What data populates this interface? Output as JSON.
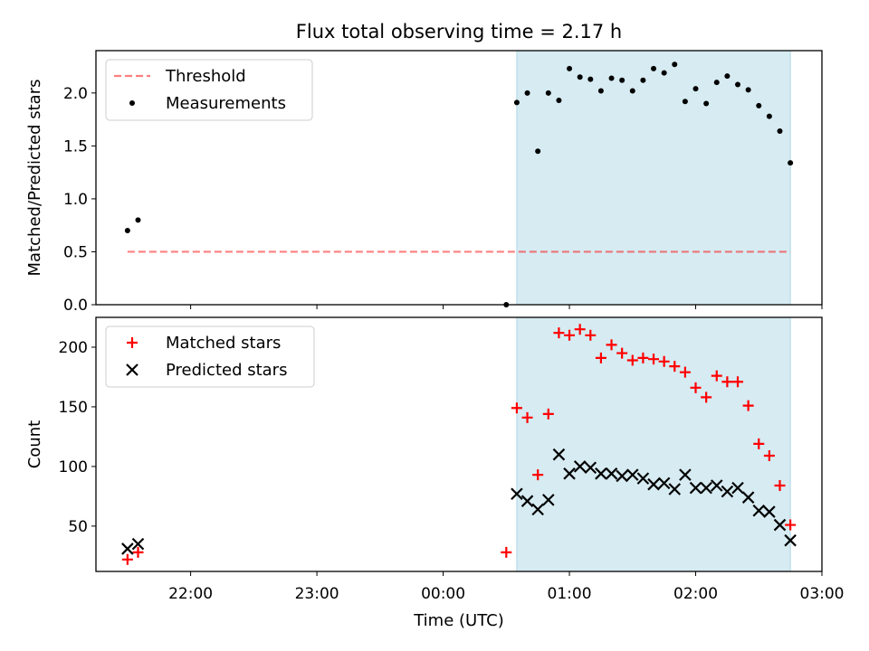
{
  "figure_title": "Flux total observing time = 2.17 h",
  "colors": {
    "shade": "#add8e6",
    "threshold": "#ff0000",
    "matched": "#ff0000",
    "predicted": "#000000",
    "measurement": "#000000"
  },
  "chart_data": [
    {
      "type": "scatter",
      "panel": "top",
      "ylabel": "Matched/Predicted stars",
      "ylim": [
        0,
        2.4
      ],
      "yticks": [
        0.0,
        0.5,
        1.0,
        1.5,
        2.0
      ],
      "ytick_labels": [
        "0.0",
        "0.5",
        "1.0",
        "1.5",
        "2.0"
      ],
      "xlim": [
        "21:15",
        "03:00"
      ],
      "shaded_span": [
        "00:35",
        "02:45"
      ],
      "legend": {
        "position": "upper-left",
        "entries": [
          "Threshold",
          "Measurements"
        ]
      },
      "threshold": {
        "name": "Threshold",
        "value": 0.5,
        "x": [
          "21:30",
          "02:45"
        ]
      },
      "series": [
        {
          "name": "Measurements",
          "x": [
            "21:30",
            "21:35",
            "00:30",
            "00:35",
            "00:40",
            "00:45",
            "00:50",
            "00:55",
            "01:00",
            "01:05",
            "01:10",
            "01:15",
            "01:20",
            "01:25",
            "01:30",
            "01:35",
            "01:40",
            "01:45",
            "01:50",
            "01:55",
            "02:00",
            "02:05",
            "02:10",
            "02:15",
            "02:20",
            "02:25",
            "02:30",
            "02:35",
            "02:40",
            "02:45"
          ],
          "y": [
            0.7,
            0.8,
            0.0,
            1.91,
            2.0,
            1.45,
            2.0,
            1.93,
            2.23,
            2.15,
            2.13,
            2.02,
            2.14,
            2.12,
            2.02,
            2.12,
            2.23,
            2.19,
            2.27,
            1.92,
            2.04,
            1.9,
            2.1,
            2.16,
            2.08,
            2.03,
            1.88,
            1.78,
            1.64,
            1.34
          ]
        }
      ]
    },
    {
      "type": "scatter",
      "panel": "bottom",
      "xlabel": "Time (UTC)",
      "ylabel": "Count",
      "ylim": [
        12,
        225
      ],
      "yticks": [
        50,
        100,
        150,
        200
      ],
      "ytick_labels": [
        "50",
        "100",
        "150",
        "200"
      ],
      "xlim": [
        "21:15",
        "03:00"
      ],
      "xticks": [
        "22:00",
        "23:00",
        "00:00",
        "01:00",
        "02:00",
        "03:00"
      ],
      "shaded_span": [
        "00:35",
        "02:45"
      ],
      "legend": {
        "position": "upper-left",
        "entries": [
          "Matched stars",
          "Predicted stars"
        ]
      },
      "series": [
        {
          "name": "Matched stars",
          "marker": "plus",
          "x": [
            "21:30",
            "21:35",
            "00:30",
            "00:35",
            "00:40",
            "00:45",
            "00:50",
            "00:55",
            "01:00",
            "01:05",
            "01:10",
            "01:15",
            "01:20",
            "01:25",
            "01:30",
            "01:35",
            "01:40",
            "01:45",
            "01:50",
            "01:55",
            "02:00",
            "02:05",
            "02:10",
            "02:15",
            "02:20",
            "02:25",
            "02:30",
            "02:35",
            "02:40",
            "02:45"
          ],
          "y": [
            22,
            28,
            28,
            149,
            141,
            93,
            144,
            212,
            210,
            215,
            210,
            191,
            202,
            195,
            189,
            191,
            190,
            188,
            184,
            179,
            166,
            158,
            176,
            171,
            171,
            151,
            119,
            109,
            84,
            51
          ]
        },
        {
          "name": "Predicted stars",
          "marker": "x",
          "x": [
            "21:30",
            "21:35",
            "00:35",
            "00:40",
            "00:45",
            "00:50",
            "00:55",
            "01:00",
            "01:05",
            "01:10",
            "01:15",
            "01:20",
            "01:25",
            "01:30",
            "01:35",
            "01:40",
            "01:45",
            "01:50",
            "01:55",
            "02:00",
            "02:05",
            "02:10",
            "02:15",
            "02:20",
            "02:25",
            "02:30",
            "02:35",
            "02:40",
            "02:45"
          ],
          "y": [
            31,
            35,
            77,
            71,
            64,
            72,
            110,
            94,
            100,
            99,
            94,
            94,
            92,
            93,
            90,
            85,
            86,
            81,
            93,
            82,
            82,
            84,
            79,
            82,
            74,
            63,
            62,
            51,
            38
          ]
        }
      ]
    }
  ]
}
